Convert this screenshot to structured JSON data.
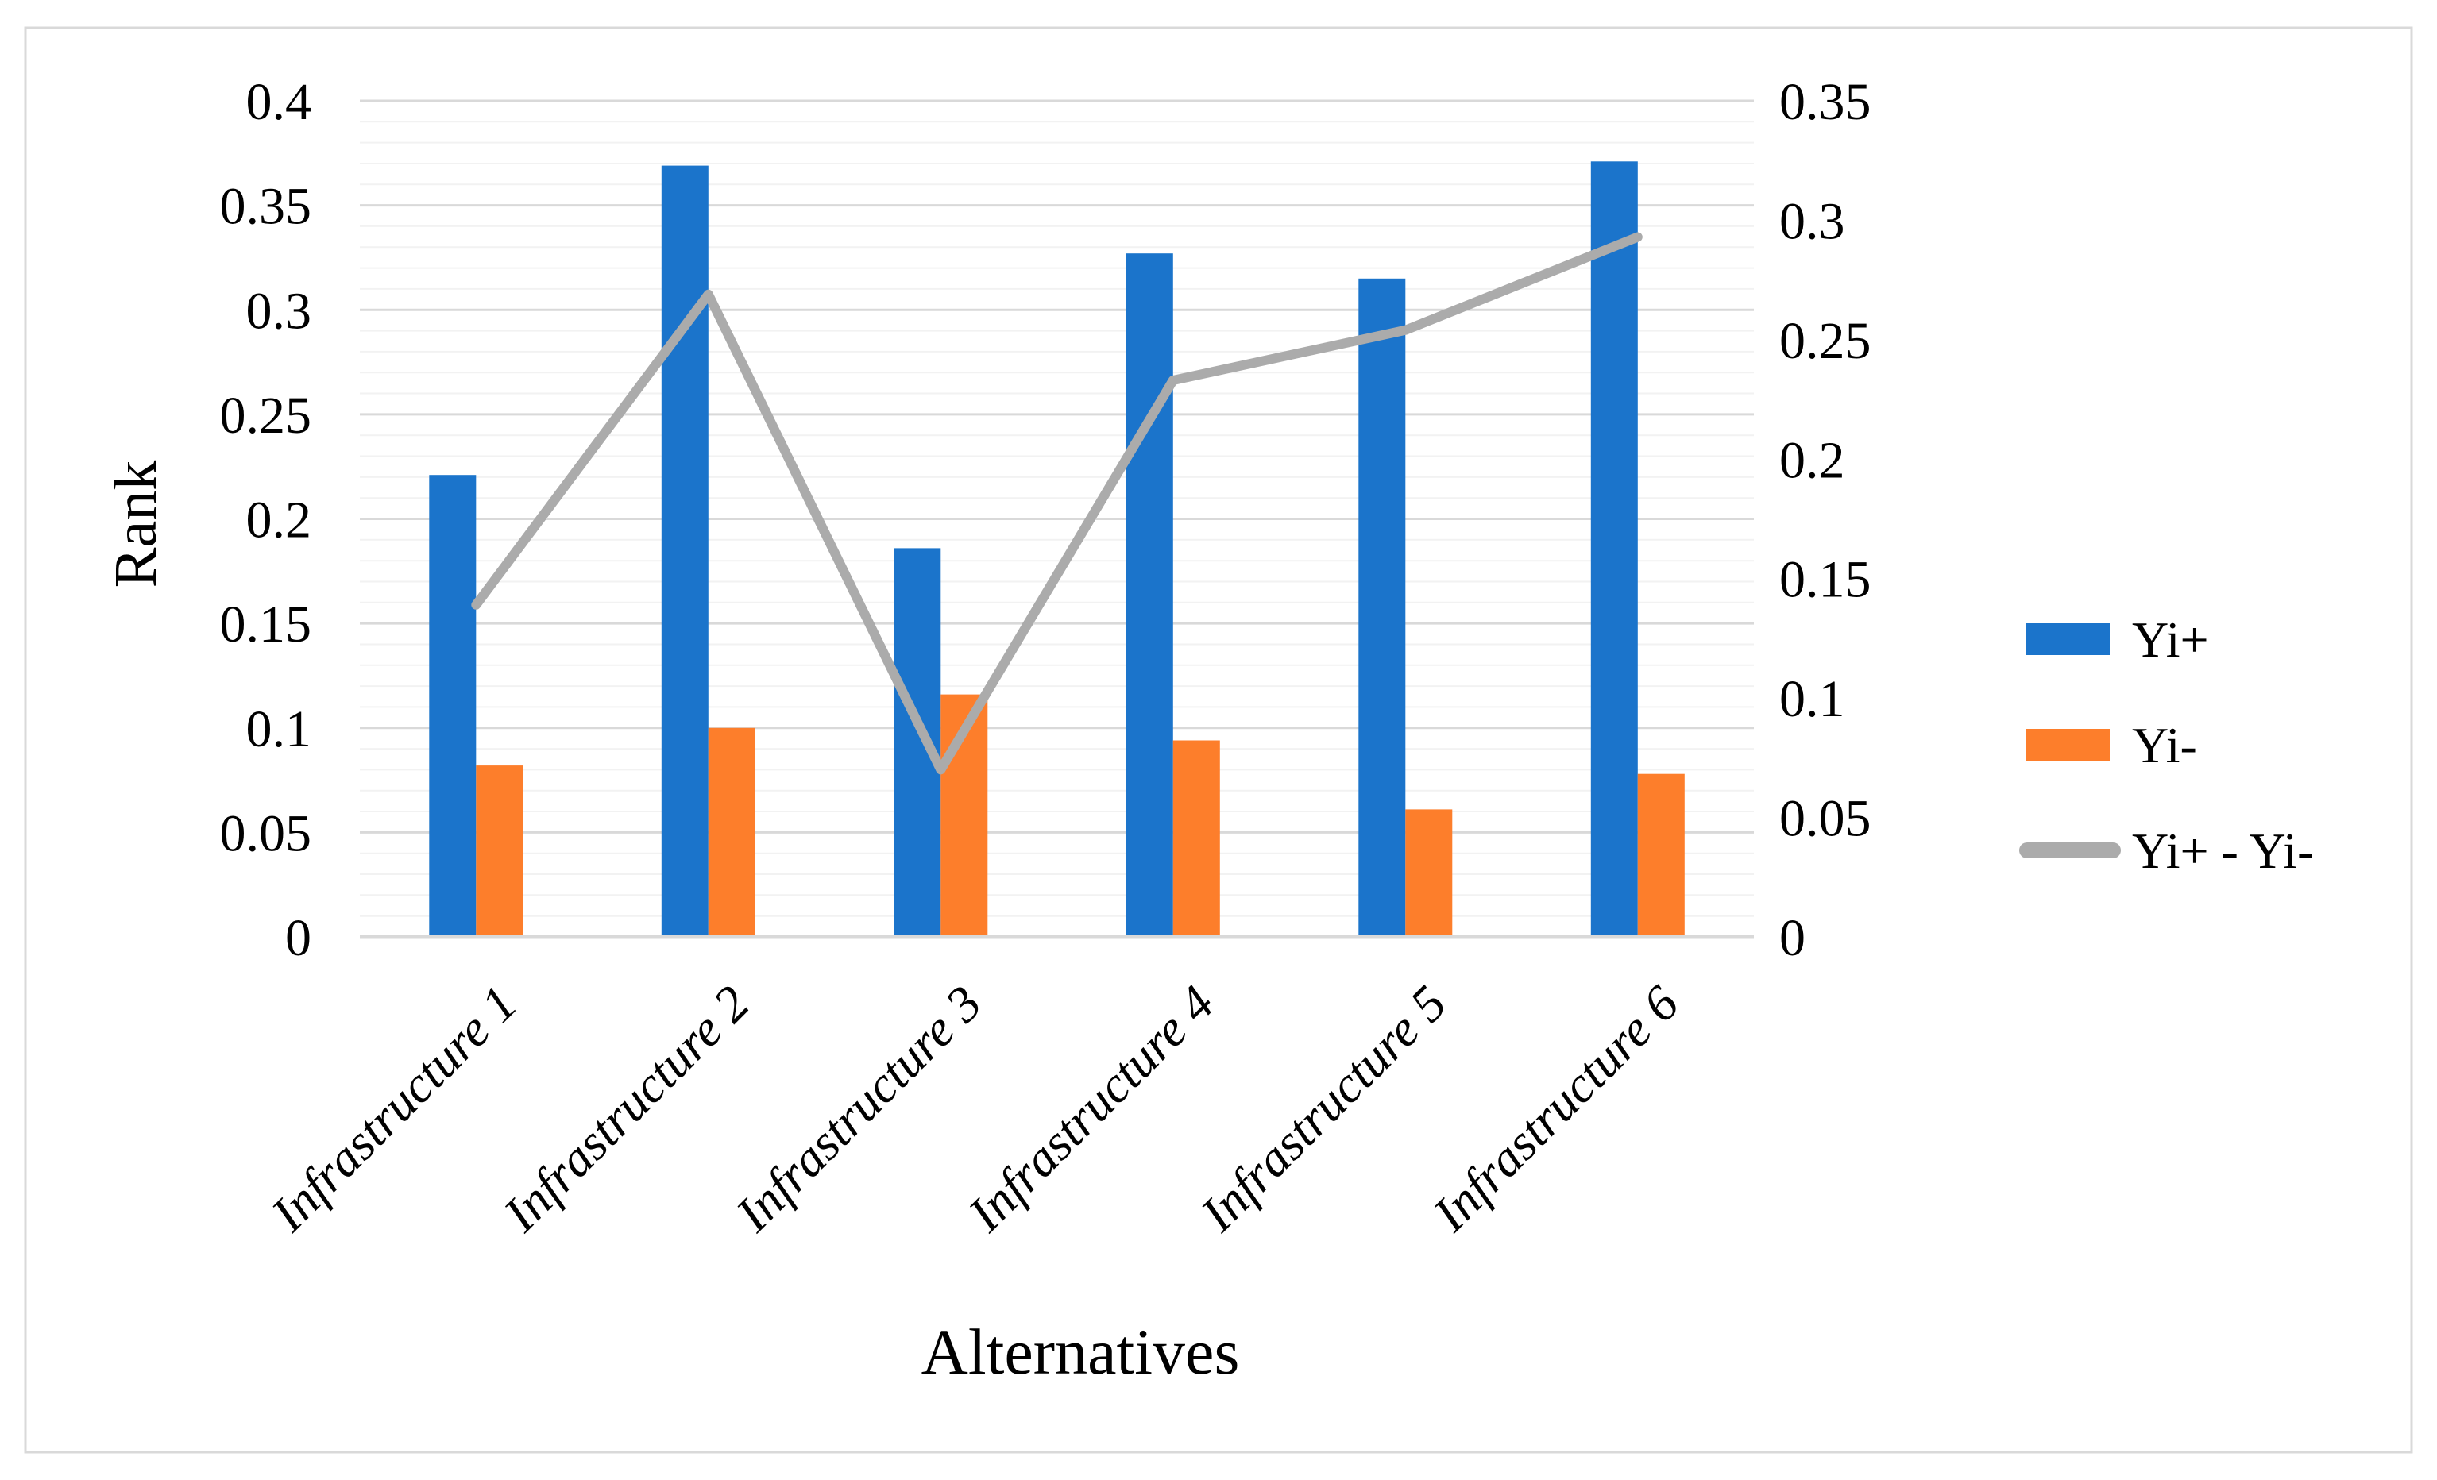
{
  "chart_data": {
    "type": "combo",
    "title": "",
    "categories": [
      "Infrastructure 1",
      "Infrastructure 2",
      "Infrastructure 3",
      "Infrastructure 4",
      "Infrastructure 5",
      "Infrastructure 6"
    ],
    "series": [
      {
        "name": "Yi+",
        "type": "bar",
        "axis": "left",
        "color": "#1B74CB",
        "values": [
          0.221,
          0.369,
          0.186,
          0.327,
          0.315,
          0.371
        ]
      },
      {
        "name": "Yi-",
        "type": "bar",
        "axis": "left",
        "color": "#FD7E2B",
        "values": [
          0.082,
          0.1,
          0.116,
          0.094,
          0.061,
          0.078
        ]
      },
      {
        "name": "Yi+ - Yi-",
        "type": "line",
        "axis": "right",
        "color": "#ABABAB",
        "values": [
          0.139,
          0.269,
          0.07,
          0.233,
          0.254,
          0.293
        ]
      }
    ],
    "left_axis": {
      "title": "Rank",
      "min": 0,
      "max": 0.4,
      "tick_step": 0.05,
      "ticks": [
        {
          "value": 0,
          "label": "0"
        },
        {
          "value": 0.05,
          "label": "0.05"
        },
        {
          "value": 0.1,
          "label": "0.1"
        },
        {
          "value": 0.15,
          "label": "0.15"
        },
        {
          "value": 0.2,
          "label": "0.2"
        },
        {
          "value": 0.25,
          "label": "0.25"
        },
        {
          "value": 0.3,
          "label": "0.3"
        },
        {
          "value": 0.35,
          "label": "0.35"
        },
        {
          "value": 0.4,
          "label": "0.4"
        }
      ]
    },
    "right_axis": {
      "title": "",
      "min": 0,
      "max": 0.35,
      "tick_step": 0.05,
      "ticks": [
        {
          "value": 0,
          "label": "0"
        },
        {
          "value": 0.05,
          "label": "0.05"
        },
        {
          "value": 0.1,
          "label": "0.1"
        },
        {
          "value": 0.15,
          "label": "0.15"
        },
        {
          "value": 0.2,
          "label": "0.2"
        },
        {
          "value": 0.25,
          "label": "0.25"
        },
        {
          "value": 0.3,
          "label": "0.3"
        },
        {
          "value": 0.35,
          "label": "0.35"
        }
      ]
    },
    "x_axis": {
      "title": "Alternatives"
    },
    "legend": {
      "position": "right",
      "entries": [
        "Yi+",
        "Yi-",
        "Yi+ - Yi-"
      ]
    },
    "grid": {
      "minor_step": 0.01,
      "major_step": 0.05,
      "major_color": "#D9D9D9",
      "minor_color": "#F2F2F2",
      "axis_line_color": "#D9D9D9",
      "frame_color": "#D9D9D9"
    }
  }
}
